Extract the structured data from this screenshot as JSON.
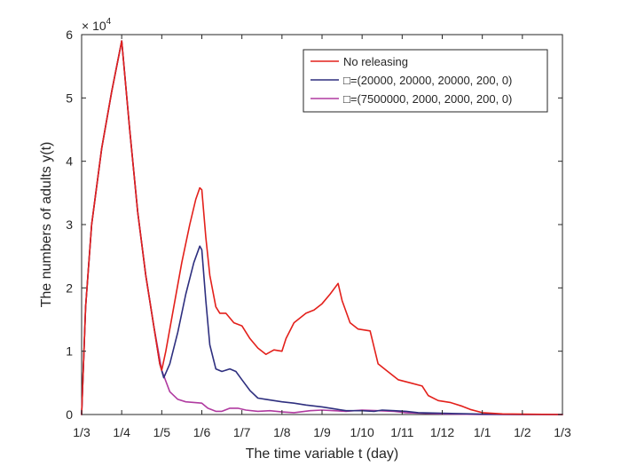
{
  "chart_data": {
    "type": "line",
    "title": "",
    "xlabel": "The time variable t (day)",
    "ylabel": "The numbers of adults y(t)",
    "y_multiplier_label": {
      "base": "× 10",
      "exponent": "4"
    },
    "xlim": [
      0,
      12
    ],
    "ylim": [
      0,
      60000
    ],
    "x_tick_labels": [
      "1/3",
      "1/4",
      "1/5",
      "1/6",
      "1/7",
      "1/8",
      "1/9",
      "1/10",
      "1/11",
      "1/12",
      "1/1",
      "1/2",
      "1/3"
    ],
    "y_ticks": [
      0,
      10000,
      20000,
      30000,
      40000,
      50000,
      60000
    ],
    "y_tick_labels": [
      "0",
      "1",
      "2",
      "3",
      "4",
      "5",
      "6"
    ],
    "grid": false,
    "legend_position": "top-right",
    "legend_glyph": "□",
    "series": [
      {
        "name": "No releasing",
        "color": "#e3201b",
        "points": [
          [
            0,
            0
          ],
          [
            0.1,
            17000
          ],
          [
            0.25,
            30000
          ],
          [
            0.5,
            42000
          ],
          [
            0.75,
            51000
          ],
          [
            1.0,
            59000
          ],
          [
            1.2,
            45000
          ],
          [
            1.4,
            32000
          ],
          [
            1.6,
            22000
          ],
          [
            1.8,
            14000
          ],
          [
            1.95,
            8000
          ],
          [
            2.0,
            7000
          ],
          [
            2.1,
            10000
          ],
          [
            2.3,
            17000
          ],
          [
            2.5,
            24000
          ],
          [
            2.7,
            30000
          ],
          [
            2.85,
            34000
          ],
          [
            2.95,
            35800
          ],
          [
            3.0,
            35500
          ],
          [
            3.1,
            28000
          ],
          [
            3.2,
            22000
          ],
          [
            3.35,
            17000
          ],
          [
            3.45,
            16000
          ],
          [
            3.6,
            16000
          ],
          [
            3.8,
            14500
          ],
          [
            4.0,
            14000
          ],
          [
            4.2,
            12000
          ],
          [
            4.4,
            10500
          ],
          [
            4.6,
            9500
          ],
          [
            4.8,
            10200
          ],
          [
            5.0,
            10000
          ],
          [
            5.1,
            12000
          ],
          [
            5.3,
            14500
          ],
          [
            5.6,
            16000
          ],
          [
            5.8,
            16500
          ],
          [
            6.0,
            17500
          ],
          [
            6.2,
            19000
          ],
          [
            6.4,
            20700
          ],
          [
            6.5,
            18000
          ],
          [
            6.7,
            14500
          ],
          [
            6.9,
            13500
          ],
          [
            7.2,
            13200
          ],
          [
            7.4,
            8000
          ],
          [
            7.6,
            7000
          ],
          [
            7.9,
            5500
          ],
          [
            8.2,
            5000
          ],
          [
            8.5,
            4500
          ],
          [
            8.65,
            3000
          ],
          [
            8.9,
            2200
          ],
          [
            9.2,
            1900
          ],
          [
            9.5,
            1300
          ],
          [
            9.7,
            800
          ],
          [
            10.0,
            300
          ],
          [
            10.5,
            100
          ],
          [
            11.0,
            50
          ],
          [
            12.0,
            0
          ]
        ]
      },
      {
        "name": "=(20000, 20000, 20000, 200, 0)",
        "color": "#2e2f7f",
        "points": [
          [
            0,
            0
          ],
          [
            0.1,
            17000
          ],
          [
            0.25,
            30000
          ],
          [
            0.5,
            42000
          ],
          [
            0.75,
            51000
          ],
          [
            1.0,
            59000
          ],
          [
            1.2,
            45000
          ],
          [
            1.4,
            32000
          ],
          [
            1.6,
            22000
          ],
          [
            1.8,
            14000
          ],
          [
            1.95,
            8000
          ],
          [
            2.05,
            5800
          ],
          [
            2.2,
            8000
          ],
          [
            2.4,
            13000
          ],
          [
            2.6,
            19000
          ],
          [
            2.8,
            24000
          ],
          [
            2.95,
            26600
          ],
          [
            3.0,
            26000
          ],
          [
            3.1,
            18000
          ],
          [
            3.2,
            11000
          ],
          [
            3.35,
            7200
          ],
          [
            3.5,
            6800
          ],
          [
            3.7,
            7200
          ],
          [
            3.85,
            6800
          ],
          [
            4.0,
            5500
          ],
          [
            4.2,
            3800
          ],
          [
            4.4,
            2600
          ],
          [
            4.6,
            2400
          ],
          [
            4.8,
            2200
          ],
          [
            5.0,
            2000
          ],
          [
            5.3,
            1800
          ],
          [
            5.6,
            1500
          ],
          [
            6.0,
            1200
          ],
          [
            6.3,
            900
          ],
          [
            6.6,
            600
          ],
          [
            7.0,
            600
          ],
          [
            7.3,
            500
          ],
          [
            7.5,
            700
          ],
          [
            7.8,
            600
          ],
          [
            8.1,
            500
          ],
          [
            8.4,
            300
          ],
          [
            9.0,
            200
          ],
          [
            10.0,
            50
          ],
          [
            11.0,
            0
          ],
          [
            12.0,
            0
          ]
        ]
      },
      {
        "name": "=(7500000, 2000, 2000, 200, 0)",
        "color": "#b03aa0",
        "points": [
          [
            0,
            0
          ],
          [
            0.1,
            17000
          ],
          [
            0.25,
            30000
          ],
          [
            0.5,
            42000
          ],
          [
            0.75,
            51000
          ],
          [
            1.0,
            59000
          ],
          [
            1.2,
            45000
          ],
          [
            1.4,
            32000
          ],
          [
            1.6,
            22000
          ],
          [
            1.8,
            14000
          ],
          [
            2.0,
            7000
          ],
          [
            2.2,
            3600
          ],
          [
            2.4,
            2400
          ],
          [
            2.6,
            2000
          ],
          [
            2.8,
            1900
          ],
          [
            3.0,
            1800
          ],
          [
            3.15,
            1000
          ],
          [
            3.35,
            500
          ],
          [
            3.5,
            500
          ],
          [
            3.7,
            1000
          ],
          [
            3.9,
            1000
          ],
          [
            4.1,
            700
          ],
          [
            4.4,
            500
          ],
          [
            4.7,
            600
          ],
          [
            5.0,
            400
          ],
          [
            5.3,
            300
          ],
          [
            5.7,
            600
          ],
          [
            6.0,
            700
          ],
          [
            6.3,
            600
          ],
          [
            6.6,
            500
          ],
          [
            7.0,
            700
          ],
          [
            7.4,
            600
          ],
          [
            7.8,
            500
          ],
          [
            8.1,
            300
          ],
          [
            8.5,
            200
          ],
          [
            9.0,
            100
          ],
          [
            10.0,
            20
          ],
          [
            11.0,
            0
          ],
          [
            12.0,
            0
          ]
        ]
      }
    ]
  }
}
